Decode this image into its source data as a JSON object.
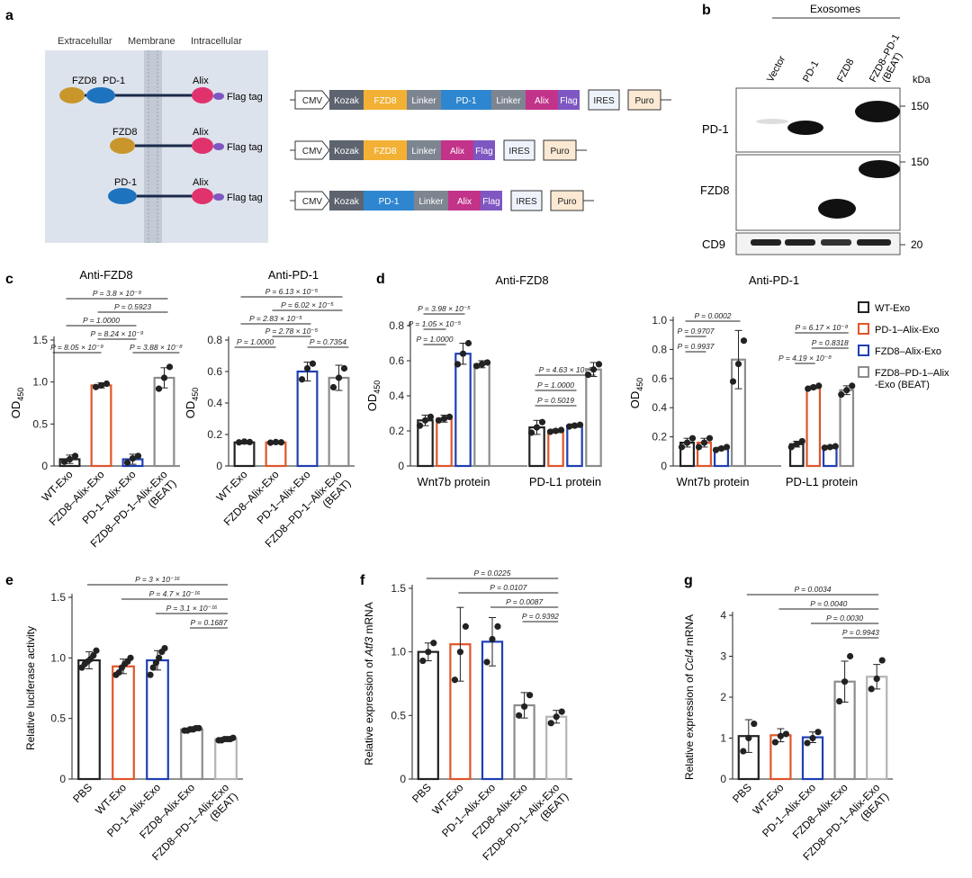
{
  "panel_labels": {
    "a": "a",
    "b": "b",
    "c": "c",
    "d": "d",
    "e": "e",
    "f": "f",
    "g": "g"
  },
  "panel_a": {
    "regions": [
      "Extracelullar",
      "Membrane",
      "Intracellular"
    ],
    "construct_labels": {
      "fzd8": "FZD8",
      "pd1": "PD-1",
      "alix": "Alix",
      "flag": "Flag tag"
    },
    "cassettes": [
      [
        "CMV",
        "Kozak",
        "FZD8",
        "Linker",
        "PD-1",
        "Linker",
        "Alix",
        "Flag",
        "IRES",
        "Puro"
      ],
      [
        "CMV",
        "Kozak",
        "FZD8",
        "Linker",
        "Alix",
        "Flag",
        "IRES",
        "Puro"
      ],
      [
        "CMV",
        "Kozak",
        "PD-1",
        "Linker",
        "Alix",
        "Flag",
        "IRES",
        "Puro"
      ]
    ]
  },
  "panel_b": {
    "header": "Exosomes",
    "lanes": [
      "Vector",
      "PD-1",
      "FZD8",
      "FZD8–PD-1",
      "(BEAT)"
    ],
    "unit": "kDa",
    "rows": [
      "PD-1",
      "FZD8",
      "CD9"
    ],
    "markers": [
      "150",
      "150",
      "20"
    ]
  },
  "common": {
    "od": "OD",
    "od_sub": "450"
  },
  "chart_data": [
    {
      "id": "c1",
      "type": "bar",
      "title": "Anti-FZD8",
      "ylabel": "OD450",
      "ylim": [
        0,
        1.5
      ],
      "yticks": [
        "0",
        "0.5",
        "1.0",
        "1.5"
      ],
      "categories": [
        "WT-Exo",
        "FZD8–Alix-Exo",
        "PD-1–Alix-Exo",
        "FZD8–PD-1–Alix-Exo (BEAT)"
      ],
      "xlabels": [
        [
          "WT-Exo"
        ],
        [
          "FZD8–Alix-Exo"
        ],
        [
          "PD-1–Alix-Exo"
        ],
        [
          "FZD8–PD-1–Alix-Exo",
          "(BEAT)"
        ]
      ],
      "values": [
        0.08,
        0.96,
        0.08,
        1.05
      ],
      "err": [
        0.05,
        0.03,
        0.06,
        0.12
      ],
      "points": [
        [
          0.05,
          0.08,
          0.12
        ],
        [
          0.94,
          0.96,
          0.98
        ],
        [
          0.04,
          0.09,
          0.12
        ],
        [
          0.92,
          1.05,
          1.18
        ]
      ],
      "colors": [
        "#222222",
        "#e0552a",
        "#1f3fb4",
        "#8c8c8c"
      ],
      "pvals": [
        {
          "t": "P = 3.8 × 10⁻⁹",
          "a": 0,
          "b": 3
        },
        {
          "t": "P = 0.5923",
          "a": 1,
          "b": 3
        },
        {
          "t": "P = 1.0000",
          "a": 0,
          "b": 2
        },
        {
          "t": "P = 8.24 × 10⁻⁹",
          "a": 1,
          "b": 2
        },
        {
          "t": "P = 8.05 × 10⁻⁹",
          "a": 0,
          "b": 1
        },
        {
          "t": "P = 3.88 × 10⁻⁸",
          "a": 2,
          "b": 3
        }
      ]
    },
    {
      "id": "c2",
      "type": "bar",
      "title": "Anti-PD-1",
      "ylabel": "OD450",
      "ylim": [
        0,
        0.8
      ],
      "yticks": [
        "0",
        "0.2",
        "0.4",
        "0.6",
        "0.8"
      ],
      "categories": [
        "WT-Exo",
        "FZD8–Alix-Exo",
        "PD-1–Alix-Exo",
        "FZD8–PD-1–Alix-Exo (BEAT)"
      ],
      "xlabels": [
        [
          "WT-Exo"
        ],
        [
          "FZD8–Alix-Exo"
        ],
        [
          "PD-1–Alix-Exo"
        ],
        [
          "FZD8–PD-1–Alix-Exo",
          "(BEAT)"
        ]
      ],
      "values": [
        0.15,
        0.15,
        0.6,
        0.56
      ],
      "err": [
        0.01,
        0.01,
        0.06,
        0.08
      ],
      "points": [
        [
          0.15,
          0.155,
          0.152
        ],
        [
          0.148,
          0.152,
          0.15
        ],
        [
          0.55,
          0.62,
          0.65
        ],
        [
          0.5,
          0.56,
          0.62
        ]
      ],
      "colors": [
        "#222222",
        "#e0552a",
        "#1f3fb4",
        "#8c8c8c"
      ],
      "pvals": [
        {
          "t": "P = 6.13 × 10⁻⁵",
          "a": 0,
          "b": 3
        },
        {
          "t": "P = 6.02 × 10⁻⁵",
          "a": 1,
          "b": 3
        },
        {
          "t": "P = 2.83 × 10⁻⁵",
          "a": 0,
          "b": 2
        },
        {
          "t": "P = 2.78 × 10⁻⁵",
          "a": 1,
          "b": 2
        },
        {
          "t": "P = 1.0000",
          "a": 0,
          "b": 1
        },
        {
          "t": "P = 0.7354",
          "a": 2,
          "b": 3
        }
      ]
    },
    {
      "id": "d1",
      "type": "grouped-bar",
      "title": "Anti-FZD8",
      "ylabel": "OD450",
      "ylim": [
        0,
        0.8
      ],
      "yticks": [
        "0",
        "0.2",
        "0.4",
        "0.6",
        "0.8"
      ],
      "groups": [
        "Wnt7b protein",
        "PD-L1 protein"
      ],
      "values": [
        [
          0.26,
          0.27,
          0.64,
          0.58
        ],
        [
          0.22,
          0.2,
          0.23,
          0.55
        ]
      ],
      "err": [
        [
          0.03,
          0.02,
          0.06,
          0.02
        ],
        [
          0.04,
          0.01,
          0.01,
          0.04
        ]
      ],
      "points": [
        [
          [
            0.23,
            0.26,
            0.28
          ],
          [
            0.26,
            0.27,
            0.28
          ],
          [
            0.58,
            0.64,
            0.7
          ],
          [
            0.57,
            0.58,
            0.59
          ]
        ],
        [
          [
            0.19,
            0.22,
            0.25
          ],
          [
            0.195,
            0.2,
            0.205
          ],
          [
            0.225,
            0.23,
            0.235
          ],
          [
            0.52,
            0.55,
            0.58
          ]
        ]
      ],
      "colors": [
        "#222222",
        "#e0552a",
        "#1f3fb4",
        "#8c8c8c"
      ],
      "pvals": [
        {
          "t": "P = 3.98 × 10⁻⁵",
          "g": 0,
          "a": 0,
          "b": 2
        },
        {
          "t": "P = 1.05 × 10⁻⁵",
          "g": 0,
          "a": 0,
          "b": 1
        },
        {
          "t": "P = 1.0000",
          "g": 0,
          "a": 0,
          "b": 1
        },
        {
          "t": "P = 4.63 × 10⁻⁶",
          "g": 1,
          "a": 0,
          "b": 3
        },
        {
          "t": "P = 1.0000",
          "g": 1,
          "a": 0,
          "b": 2
        },
        {
          "t": "P = 0.5019",
          "g": 1,
          "a": 0,
          "b": 2
        }
      ]
    },
    {
      "id": "d2",
      "type": "grouped-bar",
      "title": "Anti-PD-1",
      "ylabel": "OD450",
      "ylim": [
        0,
        1.0
      ],
      "yticks": [
        "0",
        "0.2",
        "0.4",
        "0.6",
        "0.8",
        "1.0"
      ],
      "groups": [
        "Wnt7b protein",
        "PD-L1 protein"
      ],
      "values": [
        [
          0.16,
          0.16,
          0.12,
          0.73
        ],
        [
          0.15,
          0.54,
          0.13,
          0.52
        ]
      ],
      "err": [
        [
          0.03,
          0.03,
          0.01,
          0.2
        ],
        [
          0.02,
          0.01,
          0.01,
          0.03
        ]
      ],
      "points": [
        [
          [
            0.13,
            0.16,
            0.19
          ],
          [
            0.13,
            0.16,
            0.19
          ],
          [
            0.11,
            0.12,
            0.13
          ],
          [
            0.58,
            0.7,
            0.86
          ]
        ],
        [
          [
            0.13,
            0.15,
            0.17
          ],
          [
            0.53,
            0.54,
            0.55
          ],
          [
            0.125,
            0.13,
            0.135
          ],
          [
            0.49,
            0.52,
            0.55
          ]
        ]
      ],
      "colors": [
        "#222222",
        "#e0552a",
        "#1f3fb4",
        "#8c8c8c"
      ],
      "pvals": [
        {
          "t": "P = 0.0002",
          "g": 0,
          "a": 0,
          "b": 3
        },
        {
          "t": "P = 0.9707",
          "g": 0,
          "a": 0,
          "b": 1
        },
        {
          "t": "P = 0.9937",
          "g": 0,
          "a": 0,
          "b": 1
        },
        {
          "t": "P = 6.17 × 10⁻⁸",
          "g": 1,
          "a": 0,
          "b": 3
        },
        {
          "t": "P = 0.8318",
          "g": 1,
          "a": 1,
          "b": 3
        },
        {
          "t": "P = 4.19 × 10⁻⁸",
          "g": 1,
          "a": 0,
          "b": 1
        }
      ]
    },
    {
      "id": "e",
      "type": "bar",
      "title": "",
      "ylabel": "Relative luciferase activity",
      "ylim": [
        0,
        1.5
      ],
      "yticks": [
        "0",
        "0.5",
        "1.0",
        "1.5"
      ],
      "categories": [
        "PBS",
        "WT-Exo",
        "PD-1–Alix-Exo",
        "FZD8–Alix-Exo",
        "FZD8–PD-1–Alix-Exo (BEAT)"
      ],
      "xlabels": [
        [
          "PBS"
        ],
        [
          "WT-Exo"
        ],
        [
          "PD-1–Alix-Exo"
        ],
        [
          "FZD8–Alix-Exo"
        ],
        [
          "FZD8–PD-1–Alix-Exo",
          "(BEAT)"
        ]
      ],
      "values": [
        0.98,
        0.93,
        0.98,
        0.41,
        0.33
      ],
      "err": [
        0.07,
        0.06,
        0.08,
        0.02,
        0.01
      ],
      "points": [
        [
          0.92,
          0.95,
          0.97,
          0.99,
          1.02,
          1.06
        ],
        [
          0.86,
          0.88,
          0.92,
          0.95,
          0.97,
          1.0
        ],
        [
          0.86,
          0.92,
          0.96,
          1.0,
          1.05,
          1.08
        ],
        [
          0.4,
          0.4,
          0.41,
          0.41,
          0.42,
          0.42
        ],
        [
          0.32,
          0.32,
          0.33,
          0.33,
          0.33,
          0.34
        ]
      ],
      "colors": [
        "#222222",
        "#e0552a",
        "#1f3fb4",
        "#8c8c8c",
        "#b4b4b4"
      ],
      "pvals": [
        {
          "t": "P = 3 × 10⁻¹⁶",
          "a": 0,
          "b": 4
        },
        {
          "t": "P = 4.7 × 10⁻¹⁶",
          "a": 1,
          "b": 4
        },
        {
          "t": "P = 3.1 × 10⁻¹⁶",
          "a": 2,
          "b": 4
        },
        {
          "t": "P = 0.1687",
          "a": 3,
          "b": 4
        }
      ]
    },
    {
      "id": "f",
      "type": "bar",
      "title": "",
      "ylabel_parts": [
        "Relative expression of ",
        "Atf3",
        " mRNA"
      ],
      "ylim": [
        0,
        1.5
      ],
      "yticks": [
        "0",
        "0.5",
        "1.0",
        "1.5"
      ],
      "categories": [
        "PBS",
        "WT-Exo",
        "PD-1–Alix-Exo",
        "FZD8–Alix-Exo",
        "FZD8–PD-1–Alix-Exo (BEAT)"
      ],
      "xlabels": [
        [
          "PBS"
        ],
        [
          "WT-Exo"
        ],
        [
          "PD-1–Alix-Exo"
        ],
        [
          "FZD8–Alix-Exo"
        ],
        [
          "FZD8–PD-1–Alix-Exo",
          "(BEAT)"
        ]
      ],
      "values": [
        1.0,
        1.06,
        1.08,
        0.58,
        0.49
      ],
      "err": [
        0.07,
        0.29,
        0.19,
        0.1,
        0.05
      ],
      "points": [
        [
          0.93,
          1.0,
          1.07
        ],
        [
          0.78,
          1.0,
          1.2
        ],
        [
          0.92,
          1.1,
          1.2
        ],
        [
          0.5,
          0.57,
          0.66
        ],
        [
          0.44,
          0.49,
          0.53
        ]
      ],
      "colors": [
        "#222222",
        "#e0552a",
        "#1f3fb4",
        "#8c8c8c",
        "#b4b4b4"
      ],
      "pvals": [
        {
          "t": "P = 0.0225",
          "a": 0,
          "b": 4
        },
        {
          "t": "P = 0.0107",
          "a": 1,
          "b": 4
        },
        {
          "t": "P = 0.0087",
          "a": 2,
          "b": 4
        },
        {
          "t": "P = 0.9392",
          "a": 3,
          "b": 4
        }
      ]
    },
    {
      "id": "g",
      "type": "bar",
      "title": "",
      "ylabel_parts": [
        "Relative expression of ",
        "Ccl4",
        " mRNA"
      ],
      "ylim": [
        0,
        4
      ],
      "yticks": [
        "0",
        "1",
        "2",
        "3",
        "4"
      ],
      "categories": [
        "PBS",
        "WT-Exo",
        "PD-1–Alix-Exo",
        "FZD8–Alix-Exo",
        "FZD8–PD-1–Alix-Exo (BEAT)"
      ],
      "xlabels": [
        [
          "PBS"
        ],
        [
          "WT-Exo"
        ],
        [
          "PD-1–Alix-Exo"
        ],
        [
          "FZD8–Alix-Exo"
        ],
        [
          "FZD8–PD-1–Alix-Exo",
          "(BEAT)"
        ]
      ],
      "values": [
        1.05,
        1.07,
        1.02,
        2.38,
        2.5
      ],
      "err": [
        0.4,
        0.16,
        0.13,
        0.5,
        0.3
      ],
      "points": [
        [
          0.68,
          1.0,
          1.35
        ],
        [
          0.9,
          1.05,
          1.1
        ],
        [
          0.88,
          1.0,
          1.15
        ],
        [
          1.9,
          2.38,
          3.0
        ],
        [
          2.2,
          2.45,
          2.9
        ]
      ],
      "colors": [
        "#222222",
        "#e0552a",
        "#1f3fb4",
        "#8c8c8c",
        "#b4b4b4"
      ],
      "pvals": [
        {
          "t": "P = 0.0034",
          "a": 0,
          "b": 4
        },
        {
          "t": "P = 0.0040",
          "a": 1,
          "b": 4
        },
        {
          "t": "P = 0.0030",
          "a": 2,
          "b": 4
        },
        {
          "t": "P = 0.9943",
          "a": 3,
          "b": 4
        }
      ]
    }
  ],
  "legend": {
    "items": [
      "WT-Exo",
      "PD-1–Alix-Exo",
      "FZD8–Alix-Exo",
      "FZD8–PD-1–Alix",
      "-Exo (BEAT)"
    ],
    "colors": [
      "#222222",
      "#e0552a",
      "#1f3fb4",
      "#8c8c8c"
    ]
  }
}
